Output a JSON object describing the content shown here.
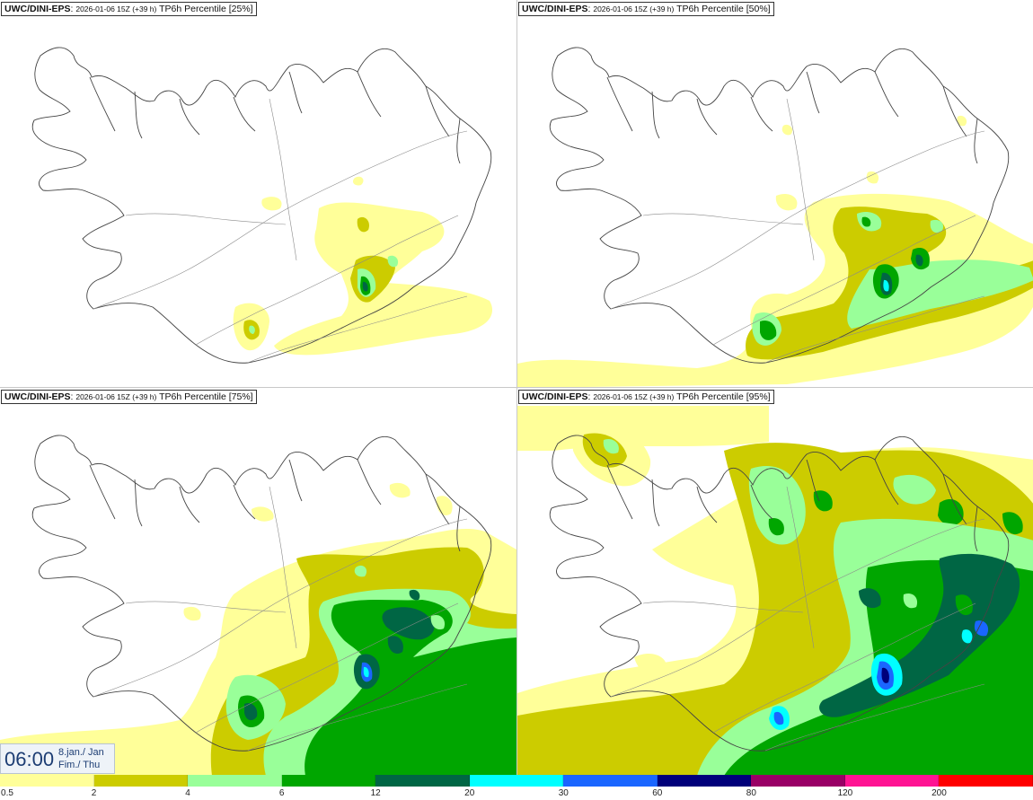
{
  "panels": [
    {
      "source": "UWC/DINI-EPS",
      "run": "2026-01-06 15Z (+39 h)",
      "field": "TP6h Percentile [25%]"
    },
    {
      "source": "UWC/DINI-EPS",
      "run": "2026-01-06 15Z (+39 h)",
      "field": "TP6h Percentile [50%]"
    },
    {
      "source": "UWC/DINI-EPS",
      "run": "2026-01-06 15Z (+39 h)",
      "field": "TP6h Percentile [75%]"
    },
    {
      "source": "UWC/DINI-EPS",
      "run": "2026-01-06 15Z (+39 h)",
      "field": "TP6h Percentile [95%]"
    }
  ],
  "valid_time": {
    "clock": "06:00",
    "date": "8.jan./ Jan",
    "day": "Fim./ Thu"
  },
  "legend": {
    "labels": [
      "0.5",
      "2",
      "4",
      "6",
      "12",
      "20",
      "30",
      "60",
      "80",
      "120",
      "200"
    ],
    "colors": [
      "#ffff99",
      "#cccc00",
      "#99ff99",
      "#00a600",
      "#006644",
      "#00ffff",
      "#1a66ff",
      "#00007a",
      "#990066",
      "#ff1493",
      "#ff0000"
    ]
  },
  "map_colors": {
    "land": "#ffffff",
    "coast": "#444444",
    "roads": "#8a8a8a"
  }
}
